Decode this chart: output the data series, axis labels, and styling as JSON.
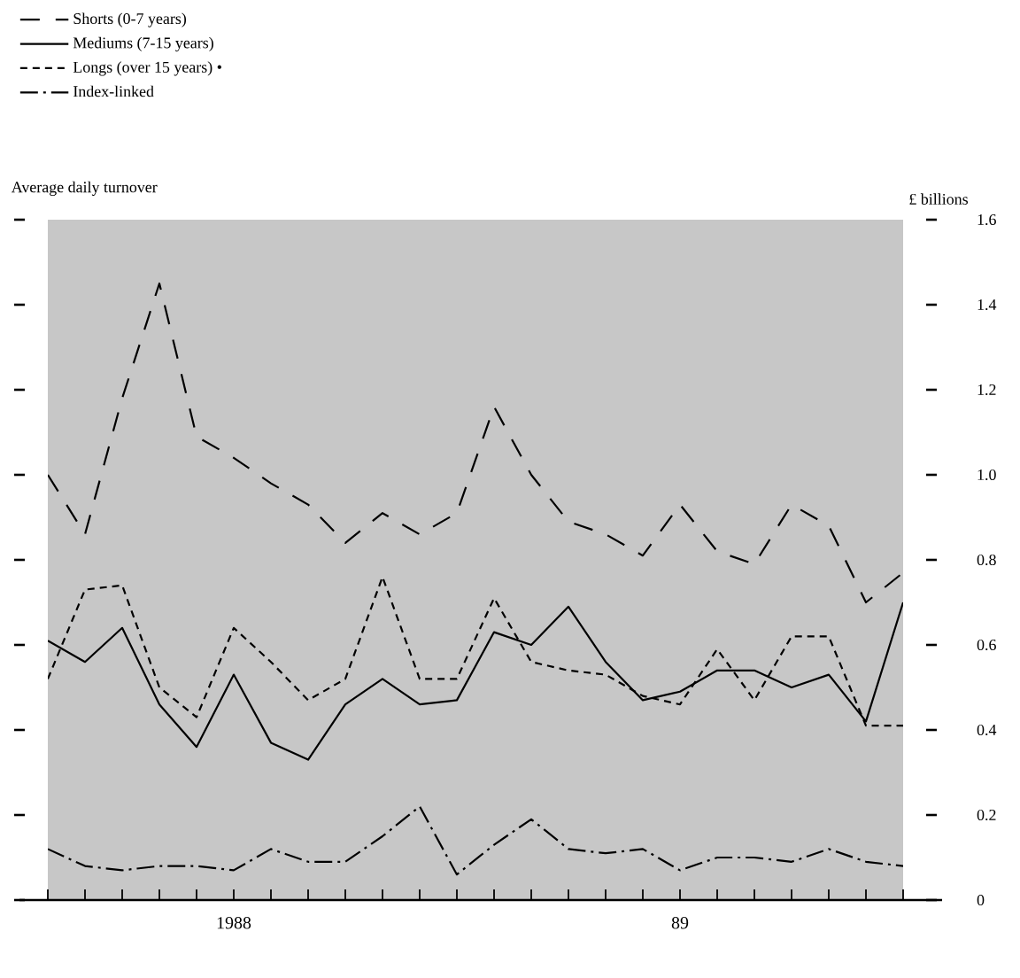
{
  "chart_data": {
    "type": "line",
    "title": "Average daily turnover",
    "ylabel": "£ billions",
    "x": [
      "1987-08",
      "1987-09",
      "1987-10",
      "1987-11",
      "1987-12",
      "1988-01",
      "1988-02",
      "1988-03",
      "1988-04",
      "1988-05",
      "1988-06",
      "1988-07",
      "1988-08",
      "1988-09",
      "1988-10",
      "1988-11",
      "1988-12",
      "1989-01",
      "1989-02",
      "1989-03",
      "1989-04",
      "1989-05",
      "1989-06",
      "1989-07"
    ],
    "series": [
      {
        "name": "Shorts (0-7 years)",
        "color": "#000000",
        "line_style": "longdash",
        "values": [
          1.0,
          0.86,
          1.18,
          1.45,
          1.09,
          1.04,
          0.98,
          0.93,
          0.84,
          0.91,
          0.86,
          0.91,
          1.16,
          1.0,
          0.89,
          0.86,
          0.81,
          0.93,
          0.82,
          0.79,
          0.93,
          0.88,
          0.7,
          0.77
        ]
      },
      {
        "name": "Mediums (7-15 years)",
        "color": "#000000",
        "line_style": "solid",
        "values": [
          0.61,
          0.56,
          0.64,
          0.46,
          0.36,
          0.53,
          0.37,
          0.33,
          0.46,
          0.52,
          0.46,
          0.47,
          0.63,
          0.6,
          0.69,
          0.56,
          0.47,
          0.49,
          0.54,
          0.54,
          0.5,
          0.53,
          0.42,
          0.7
        ]
      },
      {
        "name": "Longs (over 15 years) •",
        "color": "#000000",
        "line_style": "dashed",
        "values": [
          0.52,
          0.73,
          0.74,
          0.5,
          0.43,
          0.64,
          0.56,
          0.47,
          0.52,
          0.76,
          0.52,
          0.52,
          0.71,
          0.56,
          0.54,
          0.53,
          0.48,
          0.46,
          0.59,
          0.47,
          0.62,
          0.62,
          0.41,
          0.41
        ]
      },
      {
        "name": "Index-linked",
        "color": "#000000",
        "line_style": "dashdot",
        "values": [
          0.12,
          0.08,
          0.07,
          0.08,
          0.08,
          0.07,
          0.12,
          0.09,
          0.09,
          0.15,
          0.22,
          0.06,
          0.13,
          0.19,
          0.12,
          0.11,
          0.12,
          0.07,
          0.1,
          0.1,
          0.09,
          0.12,
          0.09,
          0.08
        ]
      }
    ],
    "xlim": [
      "1987-08",
      "1989-07"
    ],
    "xticks": [
      {
        "value": "1987-08",
        "label": null
      },
      {
        "value": "1987-09",
        "label": null
      },
      {
        "value": "1987-10",
        "label": null
      },
      {
        "value": "1987-11",
        "label": null
      },
      {
        "value": "1987-12",
        "label": null
      },
      {
        "value": "1988-01",
        "label": "1988"
      },
      {
        "value": "1988-02",
        "label": null
      },
      {
        "value": "1988-03",
        "label": null
      },
      {
        "value": "1988-04",
        "label": null
      },
      {
        "value": "1988-05",
        "label": null
      },
      {
        "value": "1988-06",
        "label": null
      },
      {
        "value": "1988-07",
        "label": null
      },
      {
        "value": "1988-08",
        "label": null
      },
      {
        "value": "1988-09",
        "label": null
      },
      {
        "value": "1988-10",
        "label": null
      },
      {
        "value": "1988-11",
        "label": null
      },
      {
        "value": "1988-12",
        "label": null
      },
      {
        "value": "1989-01",
        "label": "89"
      },
      {
        "value": "1989-02",
        "label": null
      },
      {
        "value": "1989-03",
        "label": null
      },
      {
        "value": "1989-04",
        "label": null
      },
      {
        "value": "1989-05",
        "label": null
      },
      {
        "value": "1989-06",
        "label": null
      },
      {
        "value": "1989-07",
        "label": null
      }
    ],
    "ylim": [
      0,
      1.6
    ],
    "yticks": [
      0,
      0.2,
      0.4,
      0.6,
      0.8,
      {
        "value": 1,
        "label": "1.0"
      },
      1.2,
      1.4,
      1.6
    ],
    "legend": "top left",
    "grid": false,
    "marker": "none"
  }
}
